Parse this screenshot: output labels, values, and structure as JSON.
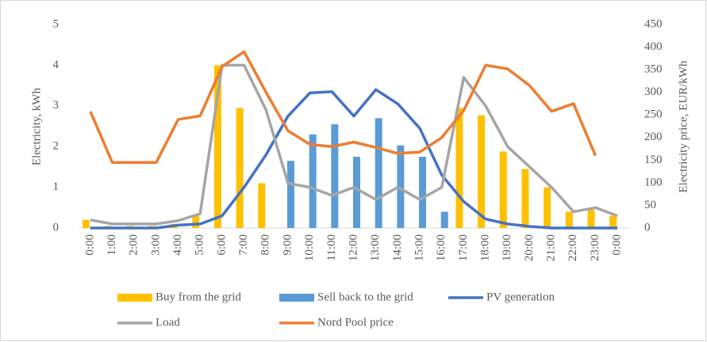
{
  "chart_data": {
    "type": "combo",
    "categories": [
      "0:00",
      "1:00",
      "2:00",
      "3:00",
      "4:00",
      "5:00",
      "6:00",
      "7:00",
      "8:00",
      "9:00",
      "10:00",
      "11:00",
      "12:00",
      "13:00",
      "14:00",
      "15:00",
      "16:00",
      "17:00",
      "18:00",
      "19:00",
      "20:00",
      "21:00",
      "22:00",
      "23:00",
      "0:00"
    ],
    "ylabel": "Electricity, kWh",
    "y2label": "Electricity price, EUR/kWh",
    "ylim": [
      0,
      5
    ],
    "yticks": [
      0,
      1,
      2,
      3,
      4,
      5
    ],
    "y2lim": [
      0,
      450
    ],
    "y2ticks": [
      0,
      50,
      100,
      150,
      200,
      250,
      300,
      350,
      400,
      450
    ],
    "grid": false,
    "legend": "bottom",
    "series": [
      {
        "name": "Buy from the grid",
        "kind": "bar",
        "color": "#ffc000",
        "values": [
          0.2,
          0.05,
          0.05,
          0.05,
          0.1,
          0.3,
          4.0,
          2.95,
          1.1,
          0,
          0,
          0,
          0,
          0,
          0,
          0,
          0,
          2.95,
          2.77,
          1.88,
          1.45,
          1.0,
          0.4,
          0.45,
          0.3
        ]
      },
      {
        "name": "Sell back to the grid",
        "kind": "bar",
        "color": "#5b9bd5",
        "values": [
          0,
          0,
          0,
          0,
          0,
          0,
          0,
          0,
          0,
          1.65,
          2.3,
          2.55,
          1.75,
          2.7,
          2.03,
          1.75,
          0.4,
          0,
          0,
          0,
          0,
          0,
          0,
          0,
          0
        ]
      },
      {
        "name": "PV generation",
        "kind": "line",
        "color": "#4472c4",
        "values": [
          0,
          0,
          0,
          0,
          0.07,
          0.1,
          0.3,
          1.0,
          1.8,
          2.75,
          3.32,
          3.35,
          2.75,
          3.4,
          3.05,
          2.45,
          1.3,
          0.65,
          0.22,
          0.1,
          0.04,
          0,
          0,
          0,
          0
        ]
      },
      {
        "name": "Load",
        "kind": "line",
        "color": "#a5a5a5",
        "values": [
          0.2,
          0.1,
          0.1,
          0.1,
          0.18,
          0.35,
          4.0,
          4.0,
          2.9,
          1.1,
          1.0,
          0.8,
          1.0,
          0.7,
          1.0,
          0.7,
          1.0,
          3.7,
          3.0,
          2.0,
          1.5,
          1.0,
          0.4,
          0.5,
          0.3
        ]
      },
      {
        "name": "Nord Pool price",
        "kind": "line",
        "axis": "y2",
        "color": "#ed7d31",
        "values": [
          258,
          145,
          145,
          145,
          240,
          248,
          357,
          390,
          300,
          215,
          185,
          180,
          190,
          178,
          165,
          168,
          200,
          260,
          360,
          352,
          315,
          258,
          275,
          160,
          null
        ]
      }
    ]
  }
}
